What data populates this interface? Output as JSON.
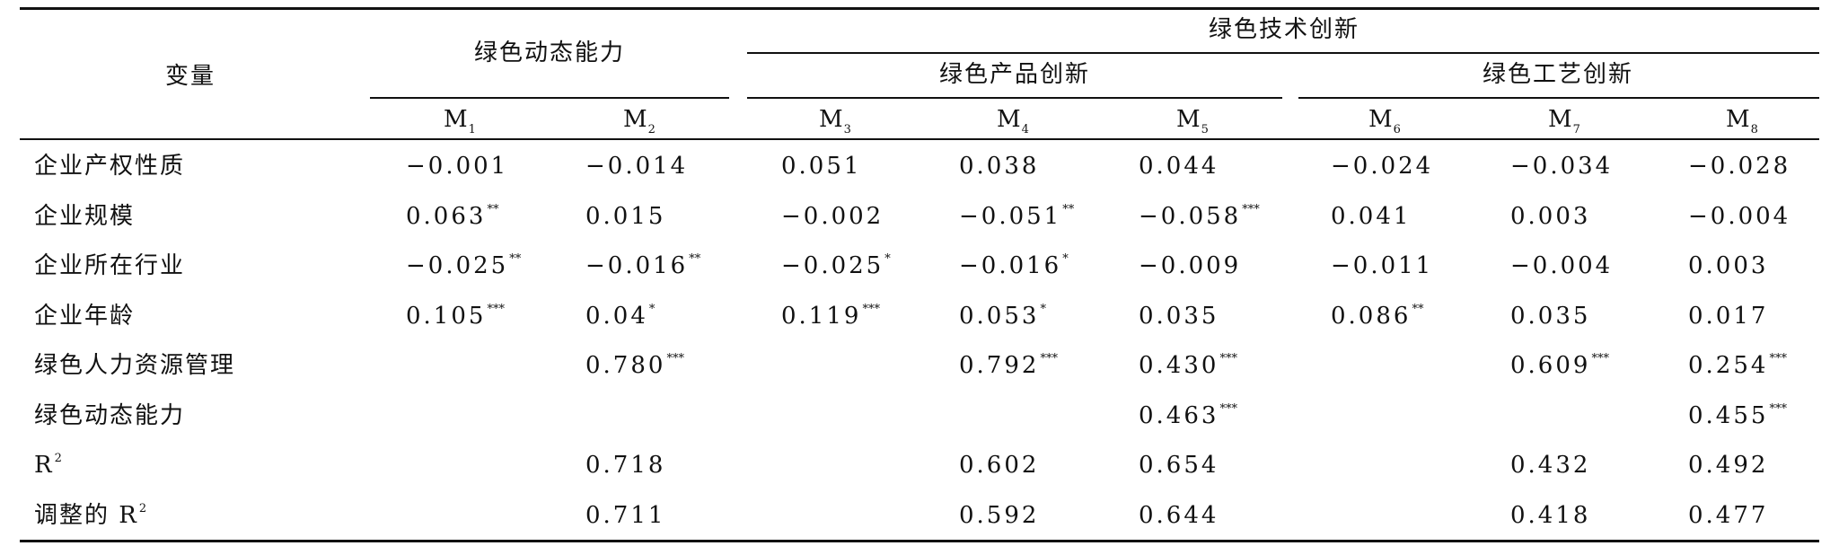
{
  "header": {
    "variable": "变量",
    "green_dynamic_capability": "绿色动态能力",
    "green_tech_innovation": "绿色技术创新",
    "green_product_innovation": "绿色产品创新",
    "green_process_innovation": "绿色工艺创新",
    "models": [
      {
        "base": "M",
        "sub": "1"
      },
      {
        "base": "M",
        "sub": "2"
      },
      {
        "base": "M",
        "sub": "3"
      },
      {
        "base": "M",
        "sub": "4"
      },
      {
        "base": "M",
        "sub": "5"
      },
      {
        "base": "M",
        "sub": "6"
      },
      {
        "base": "M",
        "sub": "7"
      },
      {
        "base": "M",
        "sub": "8"
      }
    ]
  },
  "rows": [
    {
      "label": "企业产权性质",
      "cells": [
        {
          "v": "−0.001",
          "s": ""
        },
        {
          "v": "−0.014",
          "s": ""
        },
        {
          "v": "0.051",
          "s": ""
        },
        {
          "v": "0.038",
          "s": ""
        },
        {
          "v": "0.044",
          "s": ""
        },
        {
          "v": "−0.024",
          "s": ""
        },
        {
          "v": "−0.034",
          "s": ""
        },
        {
          "v": "−0.028",
          "s": ""
        }
      ]
    },
    {
      "label": "企业规模",
      "cells": [
        {
          "v": "0.063",
          "s": "**"
        },
        {
          "v": "0.015",
          "s": ""
        },
        {
          "v": "−0.002",
          "s": ""
        },
        {
          "v": "−0.051",
          "s": "**"
        },
        {
          "v": "−0.058",
          "s": "***"
        },
        {
          "v": "0.041",
          "s": ""
        },
        {
          "v": "0.003",
          "s": ""
        },
        {
          "v": "−0.004",
          "s": ""
        }
      ]
    },
    {
      "label": "企业所在行业",
      "cells": [
        {
          "v": "−0.025",
          "s": "**"
        },
        {
          "v": "−0.016",
          "s": "**"
        },
        {
          "v": "−0.025",
          "s": "*"
        },
        {
          "v": "−0.016",
          "s": "*"
        },
        {
          "v": "−0.009",
          "s": ""
        },
        {
          "v": "−0.011",
          "s": ""
        },
        {
          "v": "−0.004",
          "s": ""
        },
        {
          "v": "0.003",
          "s": ""
        }
      ]
    },
    {
      "label": "企业年龄",
      "cells": [
        {
          "v": "0.105",
          "s": "***"
        },
        {
          "v": "0.04",
          "s": "*"
        },
        {
          "v": "0.119",
          "s": "***"
        },
        {
          "v": "0.053",
          "s": "*"
        },
        {
          "v": "0.035",
          "s": ""
        },
        {
          "v": "0.086",
          "s": "**"
        },
        {
          "v": "0.035",
          "s": ""
        },
        {
          "v": "0.017",
          "s": ""
        }
      ]
    },
    {
      "label": "绿色人力资源管理",
      "cells": [
        {
          "v": "",
          "s": ""
        },
        {
          "v": "0.780",
          "s": "***"
        },
        {
          "v": "",
          "s": ""
        },
        {
          "v": "0.792",
          "s": "***"
        },
        {
          "v": "0.430",
          "s": "***"
        },
        {
          "v": "",
          "s": ""
        },
        {
          "v": "0.609",
          "s": "***"
        },
        {
          "v": "0.254",
          "s": "***"
        }
      ]
    },
    {
      "label": "绿色动态能力",
      "cells": [
        {
          "v": "",
          "s": ""
        },
        {
          "v": "",
          "s": ""
        },
        {
          "v": "",
          "s": ""
        },
        {
          "v": "",
          "s": ""
        },
        {
          "v": "0.463",
          "s": "***"
        },
        {
          "v": "",
          "s": ""
        },
        {
          "v": "",
          "s": ""
        },
        {
          "v": "0.455",
          "s": "***"
        }
      ]
    },
    {
      "label": "R",
      "label_sup": "2",
      "cells": [
        {
          "v": "",
          "s": ""
        },
        {
          "v": "0.718",
          "s": ""
        },
        {
          "v": "",
          "s": ""
        },
        {
          "v": "0.602",
          "s": ""
        },
        {
          "v": "0.654",
          "s": ""
        },
        {
          "v": "",
          "s": ""
        },
        {
          "v": "0.432",
          "s": ""
        },
        {
          "v": "0.492",
          "s": ""
        }
      ]
    },
    {
      "label": "调整的 R",
      "label_sup": "2",
      "cells": [
        {
          "v": "",
          "s": ""
        },
        {
          "v": "0.711",
          "s": ""
        },
        {
          "v": "",
          "s": ""
        },
        {
          "v": "0.592",
          "s": ""
        },
        {
          "v": "0.644",
          "s": ""
        },
        {
          "v": "",
          "s": ""
        },
        {
          "v": "0.418",
          "s": ""
        },
        {
          "v": "0.477",
          "s": ""
        }
      ]
    }
  ]
}
